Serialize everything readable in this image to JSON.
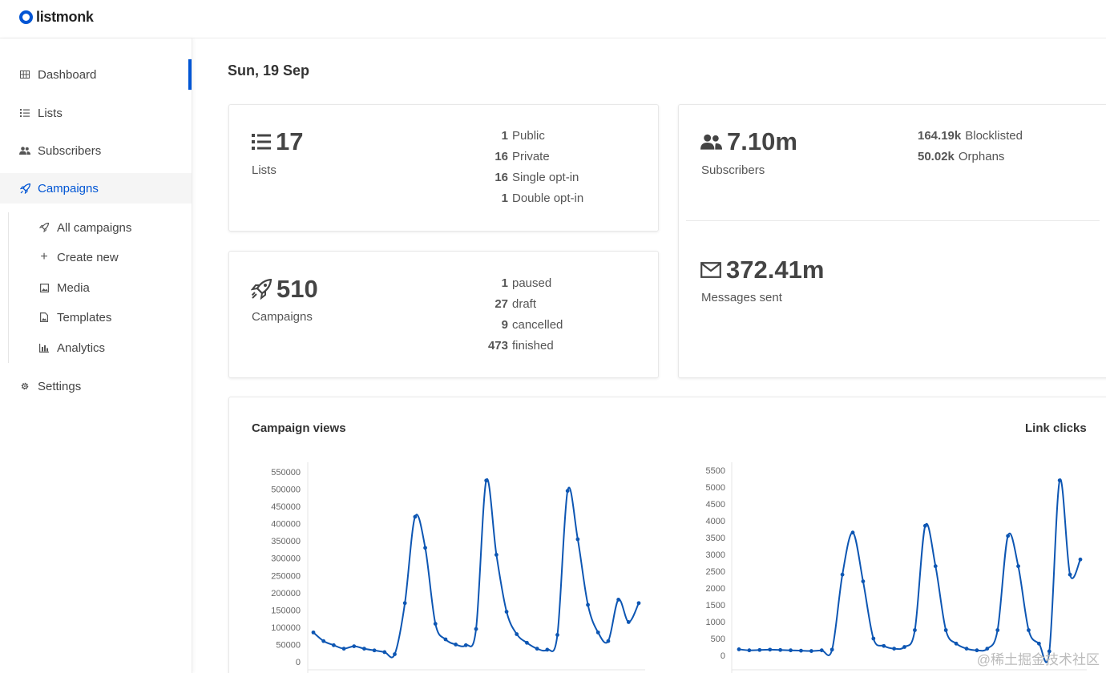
{
  "app": {
    "name": "listmonk"
  },
  "sidebar": {
    "items": [
      {
        "label": "Dashboard",
        "icon": "grid-icon"
      },
      {
        "label": "Lists",
        "icon": "list-icon"
      },
      {
        "label": "Subscribers",
        "icon": "users-icon"
      },
      {
        "label": "Campaigns",
        "icon": "rocket-icon"
      }
    ],
    "campaign_subitems": [
      {
        "label": "All campaigns",
        "icon": "rocket-icon"
      },
      {
        "label": "Create new",
        "icon": "plus-icon"
      },
      {
        "label": "Media",
        "icon": "image-icon"
      },
      {
        "label": "Templates",
        "icon": "file-image-icon"
      },
      {
        "label": "Analytics",
        "icon": "bar-chart-icon"
      }
    ],
    "settings": {
      "label": "Settings",
      "icon": "gear-icon"
    }
  },
  "dashboard": {
    "date": "Sun, 19 Sep",
    "lists": {
      "count": "17",
      "label": "Lists",
      "stats": [
        {
          "value": "1",
          "label": "Public"
        },
        {
          "value": "16",
          "label": "Private"
        },
        {
          "value": "16",
          "label": "Single opt-in"
        },
        {
          "value": "1",
          "label": "Double opt-in"
        }
      ]
    },
    "campaigns": {
      "count": "510",
      "label": "Campaigns",
      "stats": [
        {
          "value": "1",
          "label": "paused"
        },
        {
          "value": "27",
          "label": "draft"
        },
        {
          "value": "9",
          "label": "cancelled"
        },
        {
          "value": "473",
          "label": "finished"
        }
      ]
    },
    "subscribers": {
      "count": "7.10m",
      "label": "Subscribers",
      "stats": [
        {
          "value": "164.19k",
          "label": "Blocklisted"
        },
        {
          "value": "50.02k",
          "label": "Orphans"
        }
      ]
    },
    "messages": {
      "count": "372.41m",
      "label": "Messages sent"
    }
  },
  "colors": {
    "accent": "#0055d4",
    "line": "#0d56b3"
  },
  "chart_data": [
    {
      "type": "line",
      "title": "Campaign views",
      "yticks": [
        "0",
        "50000",
        "100000",
        "150000",
        "200000",
        "250000",
        "300000",
        "350000",
        "400000",
        "450000",
        "500000",
        "550000"
      ],
      "ylim": [
        0,
        560000
      ],
      "values": [
        85000,
        60000,
        48000,
        38000,
        45000,
        38000,
        33000,
        28000,
        22000,
        170000,
        420000,
        330000,
        110000,
        65000,
        50000,
        48000,
        95000,
        525000,
        310000,
        145000,
        80000,
        55000,
        38000,
        35000,
        78000,
        495000,
        355000,
        165000,
        85000,
        60000,
        180000,
        115000,
        170000
      ]
    },
    {
      "type": "line",
      "title": "Link clicks",
      "yticks": [
        "0",
        "500",
        "1000",
        "1500",
        "2000",
        "2500",
        "3000",
        "3500",
        "4000",
        "4500",
        "5000",
        "5500"
      ],
      "ylim": [
        0,
        5600
      ],
      "values": [
        180,
        150,
        160,
        170,
        160,
        150,
        140,
        130,
        150,
        170,
        2400,
        3650,
        2200,
        500,
        280,
        200,
        250,
        750,
        3850,
        2650,
        750,
        350,
        200,
        150,
        200,
        750,
        3550,
        2650,
        750,
        350,
        120,
        5200,
        2400,
        2850
      ]
    }
  ]
}
